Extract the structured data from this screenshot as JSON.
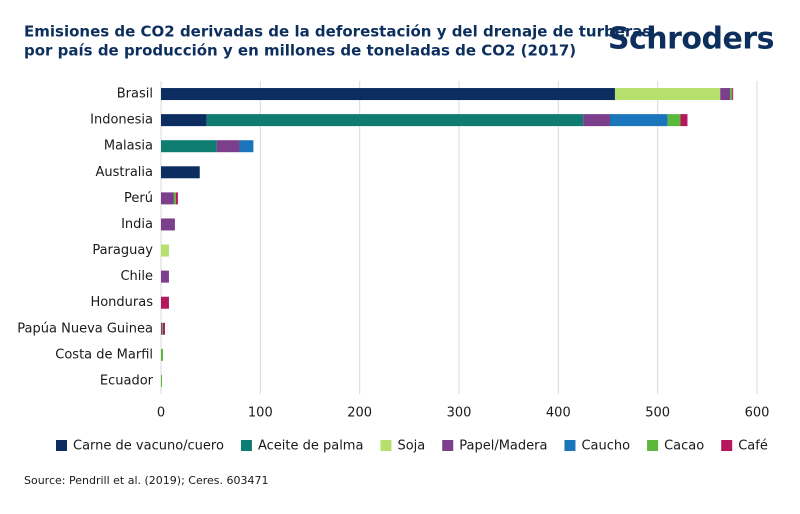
{
  "chart_data": {
    "type": "stacked-bar-horizontal",
    "title": [
      "Emisiones de CO2 derivadas de la deforestación y del drenaje de turberas,",
      "por país de producción y en millones de toneladas de CO2 (2017)"
    ],
    "brand": "Schroders",
    "source": "Source: Pendrill et al. (2019); Ceres. 603471",
    "categories": [
      "Brasil",
      "Indonesia",
      "Malasia",
      "Australia",
      "Perú",
      "India",
      "Paraguay",
      "Chile",
      "Honduras",
      "Papúa Nueva Guinea",
      "Costa de Marfil",
      "Ecuador"
    ],
    "series": [
      {
        "name": "Carne de vacuno/cuero",
        "color": "#0b2d5f",
        "values": [
          457,
          46,
          0,
          39,
          0,
          0,
          0,
          0,
          0,
          0,
          0,
          0
        ]
      },
      {
        "name": "Aceite de palma",
        "color": "#0e7c70",
        "values": [
          0,
          379,
          56,
          0,
          0,
          0,
          0,
          0,
          0,
          0,
          0,
          0
        ]
      },
      {
        "name": "Soja",
        "color": "#b5e06e",
        "values": [
          106,
          0,
          0,
          0,
          0,
          0,
          8,
          0,
          0,
          0,
          0,
          0
        ]
      },
      {
        "name": "Papel/Madera",
        "color": "#7b3f8c",
        "values": [
          10,
          27,
          23,
          0,
          13,
          14,
          0,
          8,
          0,
          1,
          0,
          0
        ]
      },
      {
        "name": "Caucho",
        "color": "#1b75bb",
        "values": [
          0,
          58,
          14,
          0,
          0,
          0,
          0,
          0,
          0,
          0,
          0,
          0
        ]
      },
      {
        "name": "Cacao",
        "color": "#5cb83c",
        "values": [
          2,
          13,
          0,
          0,
          2,
          0,
          0,
          0,
          0,
          1,
          2,
          1
        ]
      },
      {
        "name": "Café",
        "color": "#b5175f",
        "values": [
          1,
          7,
          0,
          0,
          2,
          0,
          0,
          0,
          8,
          2,
          0,
          0
        ]
      }
    ],
    "xlim": [
      0,
      600
    ],
    "xticks": [
      0,
      100,
      200,
      300,
      400,
      500,
      600
    ],
    "grid": true
  }
}
